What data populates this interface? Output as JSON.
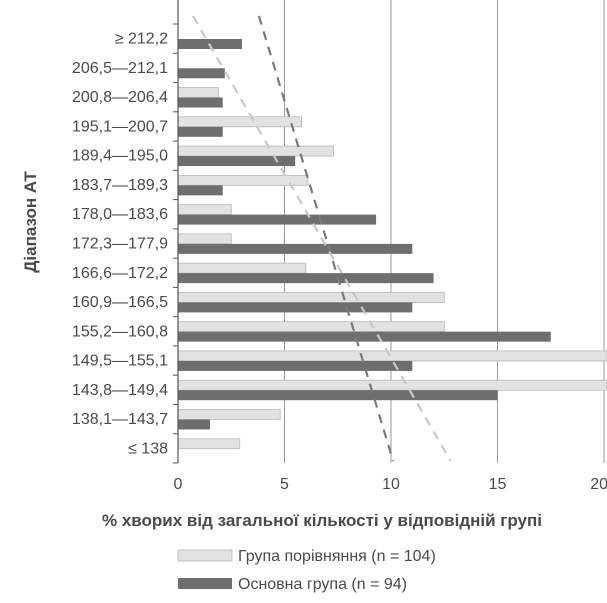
{
  "chart_data": {
    "type": "bar",
    "orientation": "horizontal",
    "xlabel": "% хворих від загальної кількості у відповідній групі",
    "ylabel": "Діапазон АТ",
    "xlim": [
      0,
      20
    ],
    "xticks": [
      "0",
      "5",
      "10",
      "15",
      "20"
    ],
    "grid": "vertical",
    "legend_position": "bottom-center",
    "categories": [
      "≥ 212,2",
      "206,5—212,1",
      "200,8—206,4",
      "195,1—200,7",
      "189,4—195,0",
      "183,7—189,3",
      "178,0—183,6",
      "172,3—177,9",
      "166,6—172,2",
      "160,9—166,5",
      "155,2—160,8",
      "149,5—155,1",
      "143,8—149,4",
      "138,1—143,7",
      "≤ 138"
    ],
    "series": [
      {
        "name": "Група порівняння (n = 104)",
        "color": "#e2e2e2",
        "values": [
          0,
          0,
          1.9,
          5.8,
          7.3,
          6.1,
          2.5,
          2.5,
          6.0,
          12.5,
          12.5,
          21.0,
          21.0,
          4.8,
          2.9
        ]
      },
      {
        "name": "Основна група (n = 94)",
        "color": "#6e6e6e",
        "values": [
          3.0,
          2.2,
          2.1,
          2.1,
          5.5,
          2.1,
          9.3,
          11.0,
          12.0,
          11.0,
          17.5,
          11.0,
          15.0,
          1.5,
          0
        ]
      }
    ],
    "trend_lines": [
      {
        "series": "Основна група (n = 94)",
        "style": "dashed",
        "color": "#7a7a7a",
        "points": [
          [
            3.8,
            "≥ 212,2"
          ],
          [
            10.1,
            "≤ 138"
          ]
        ]
      },
      {
        "series": "Група порівняння (n = 104)",
        "style": "dashed",
        "color": "#c8c8c8",
        "points": [
          [
            0.7,
            "≥ 212,2"
          ],
          [
            12.8,
            "≤ 138"
          ]
        ]
      }
    ]
  }
}
